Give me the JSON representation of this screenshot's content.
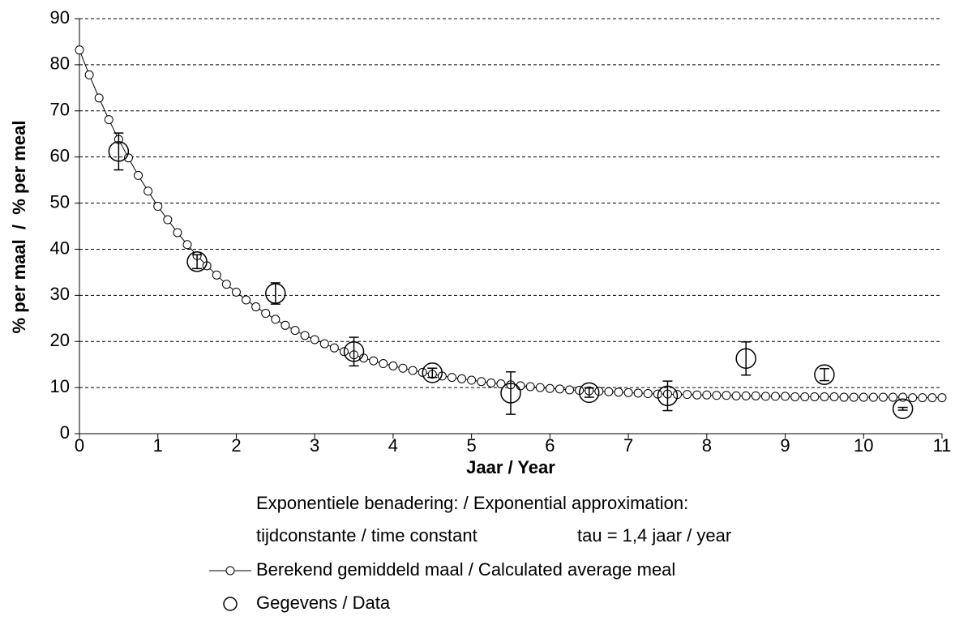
{
  "chart_data": {
    "type": "line",
    "xlabel": "Jaar / Year",
    "ylabel": "% per maal  /  % per meal",
    "annotations": [
      "Exponentiele benadering: / Exponential approximation:",
      "tijdconstante / time constant",
      "tau = 1,4 jaar / year"
    ],
    "xlim": [
      0,
      11
    ],
    "xticks": [
      0,
      1,
      2,
      3,
      4,
      5,
      6,
      7,
      8,
      9,
      10,
      11
    ],
    "ylim": [
      0,
      90
    ],
    "yticks": [
      0,
      10,
      20,
      30,
      40,
      50,
      60,
      70,
      80,
      90
    ],
    "grid": true,
    "series": [
      {
        "name": "Berekend gemiddeld maal / Calculated average meal",
        "color": "#000000",
        "marker": "small-circle",
        "x": [
          0,
          0.125,
          0.25,
          0.375,
          0.5,
          0.625,
          0.75,
          0.875,
          1,
          1.125,
          1.25,
          1.375,
          1.5,
          1.625,
          1.75,
          1.875,
          2,
          2.125,
          2.25,
          2.375,
          2.5,
          2.625,
          2.75,
          2.875,
          3,
          3.125,
          3.25,
          3.375,
          3.5,
          3.625,
          3.75,
          3.875,
          4,
          4.125,
          4.25,
          4.375,
          4.5,
          4.625,
          4.75,
          4.875,
          5,
          5.125,
          5.25,
          5.375,
          5.5,
          5.625,
          5.75,
          5.875,
          6,
          6.125,
          6.25,
          6.375,
          6.5,
          6.625,
          6.75,
          6.875,
          7,
          7.125,
          7.25,
          7.375,
          7.5,
          7.625,
          7.75,
          7.875,
          8,
          8.125,
          8.25,
          8.375,
          8.5,
          8.625,
          8.75,
          8.875,
          9,
          9.125,
          9.25,
          9.375,
          9.5,
          9.625,
          9.75,
          9.875,
          10,
          10.125,
          10.25,
          10.375,
          10.5,
          10.625,
          10.75,
          10.875,
          11
        ],
        "values": [
          83.2,
          77.8,
          72.8,
          68.1,
          63.8,
          59.8,
          56.0,
          52.6,
          49.3,
          46.4,
          43.6,
          41.0,
          38.6,
          36.4,
          34.4,
          32.4,
          30.7,
          29.0,
          27.5,
          26.1,
          24.8,
          23.5,
          22.4,
          21.3,
          20.4,
          19.5,
          18.6,
          17.8,
          17.1,
          16.4,
          15.8,
          15.2,
          14.7,
          14.2,
          13.7,
          13.3,
          12.9,
          12.5,
          12.2,
          11.9,
          11.6,
          11.3,
          11.0,
          10.8,
          10.6,
          10.4,
          10.2,
          10.0,
          9.8,
          9.7,
          9.5,
          9.4,
          9.3,
          9.2,
          9.1,
          9.0,
          8.9,
          8.8,
          8.7,
          8.6,
          8.6,
          8.5,
          8.5,
          8.4,
          8.4,
          8.3,
          8.3,
          8.2,
          8.2,
          8.2,
          8.1,
          8.1,
          8.1,
          8.0,
          8.0,
          8.0,
          8.0,
          8.0,
          7.9,
          7.9,
          7.9,
          7.9,
          7.9,
          7.9,
          7.9,
          7.8,
          7.8,
          7.8,
          7.8
        ]
      },
      {
        "name": "Gegevens / Data",
        "color": "#000000",
        "marker": "circle",
        "line": false,
        "x": [
          0.5,
          1.5,
          2.5,
          3.5,
          4.5,
          5.5,
          6.5,
          7.5,
          8.5,
          9.5,
          10.5
        ],
        "values": [
          61.2,
          37.3,
          30.4,
          17.8,
          13.2,
          8.8,
          8.9,
          8.2,
          16.3,
          12.8,
          5.4
        ],
        "errors": [
          4.0,
          1.5,
          2.3,
          3.1,
          1.0,
          4.6,
          1.0,
          3.2,
          3.6,
          1.3,
          0.3
        ]
      }
    ]
  }
}
